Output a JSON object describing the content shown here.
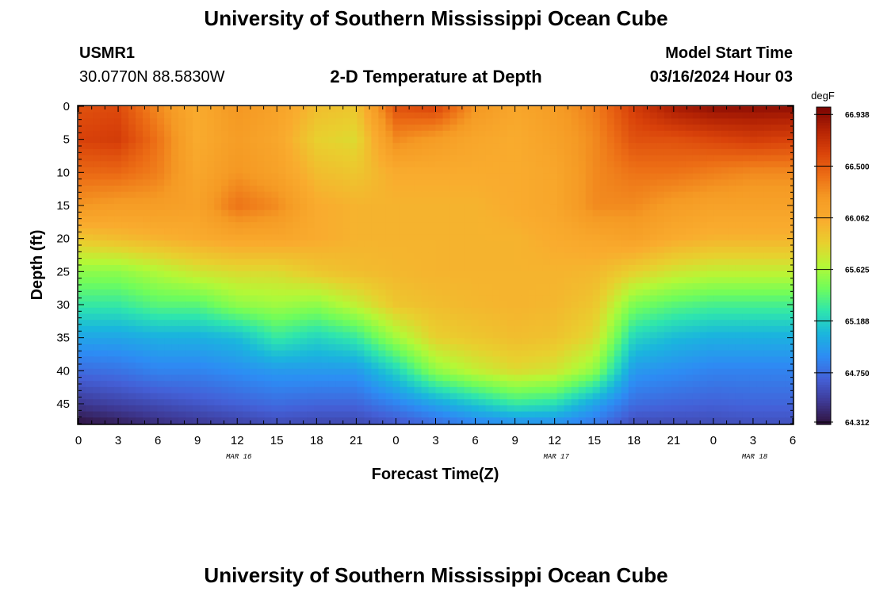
{
  "header": {
    "title": "University of Southern Mississippi Ocean Cube",
    "station_id": "USMR1",
    "station_coords": "30.0770N  88.5830W",
    "plot_title": "2-D Temperature at Depth",
    "model_label": "Model Start Time",
    "model_start": "03/16/2024 Hour 03"
  },
  "footer": {
    "title": "University of Southern Mississippi Ocean Cube"
  },
  "colors": {
    "palette": [
      "#30123b",
      "#3e3994",
      "#4460d7",
      "#2d8cf4",
      "#1ab6dd",
      "#2ee5ae",
      "#6ffd5b",
      "#b5f836",
      "#e8d02e",
      "#f9ac2e",
      "#f59a24",
      "#ec6d15",
      "#d9420a",
      "#b32204",
      "#7a0403"
    ]
  },
  "chart_data": {
    "type": "heatmap",
    "title": "2-D Temperature at Depth",
    "xlabel": "Forecast Time(Z)",
    "ylabel": "Depth (ft)",
    "units": "degF",
    "x_hours_from_start": [
      0,
      3,
      6,
      9,
      12,
      15,
      18,
      21,
      24,
      27,
      30,
      33,
      36,
      39,
      42,
      45,
      48,
      51,
      54
    ],
    "x_tick_labels": [
      "0",
      "3",
      "6",
      "9",
      "12",
      "15",
      "18",
      "21",
      "0",
      "3",
      "6",
      "9",
      "12",
      "15",
      "18",
      "21",
      "0",
      "3",
      "6"
    ],
    "date_labels": [
      {
        "hour": 12,
        "label": "MAR 16"
      },
      {
        "hour": 36,
        "label": "MAR 17"
      },
      {
        "hour": 51,
        "label": "MAR 18"
      }
    ],
    "y_ticks": [
      0,
      5,
      10,
      15,
      20,
      25,
      30,
      35,
      40,
      45
    ],
    "ylim": [
      0,
      48
    ],
    "xlim": [
      0,
      54
    ],
    "depth_ft": [
      0,
      5,
      10,
      15,
      20,
      25,
      30,
      35,
      40,
      45,
      48
    ],
    "temperature_rows": [
      [
        66.55,
        66.58,
        66.3,
        66.05,
        66.25,
        66.15,
        65.95,
        65.9,
        66.55,
        66.62,
        66.25,
        66.1,
        66.2,
        66.35,
        66.65,
        66.85,
        66.93,
        66.93,
        66.93
      ],
      [
        66.62,
        66.65,
        66.4,
        66.05,
        66.2,
        66.1,
        65.85,
        65.8,
        66.3,
        66.2,
        66.1,
        66.05,
        66.15,
        66.3,
        66.55,
        66.55,
        66.6,
        66.65,
        66.62
      ],
      [
        66.45,
        66.45,
        66.35,
        66.1,
        66.25,
        66.15,
        65.95,
        65.9,
        66.05,
        66.05,
        66.05,
        66.05,
        66.1,
        66.3,
        66.4,
        66.4,
        66.35,
        66.3,
        66.3
      ],
      [
        66.25,
        66.2,
        66.2,
        66.15,
        66.4,
        66.3,
        66.05,
        66.0,
        66.0,
        66.0,
        66.0,
        66.05,
        66.1,
        66.3,
        66.3,
        66.2,
        66.15,
        66.15,
        66.15
      ],
      [
        65.9,
        65.95,
        66.0,
        66.05,
        66.1,
        66.1,
        66.05,
        66.0,
        66.0,
        66.0,
        66.0,
        66.0,
        66.05,
        66.1,
        66.15,
        66.05,
        66.0,
        66.0,
        66.0
      ],
      [
        65.55,
        65.55,
        65.65,
        65.75,
        65.8,
        65.8,
        65.9,
        65.95,
        65.98,
        66.0,
        66.0,
        66.0,
        66.0,
        65.98,
        65.85,
        65.75,
        65.7,
        65.7,
        65.7
      ],
      [
        65.3,
        65.3,
        65.4,
        65.4,
        65.55,
        65.6,
        65.55,
        65.7,
        65.9,
        65.95,
        65.98,
        66.0,
        65.98,
        65.9,
        65.5,
        65.4,
        65.35,
        65.35,
        65.35
      ],
      [
        65.0,
        65.0,
        65.05,
        65.05,
        65.1,
        65.3,
        65.2,
        65.3,
        65.6,
        65.85,
        65.9,
        65.95,
        65.92,
        65.8,
        65.2,
        65.1,
        65.05,
        65.05,
        65.05
      ],
      [
        64.75,
        64.78,
        64.85,
        64.85,
        64.9,
        64.95,
        64.95,
        64.95,
        65.2,
        65.55,
        65.7,
        65.8,
        65.75,
        65.55,
        64.95,
        64.9,
        64.85,
        64.85,
        64.85
      ],
      [
        64.5,
        64.55,
        64.6,
        64.65,
        64.7,
        64.75,
        64.72,
        64.72,
        64.85,
        65.0,
        65.15,
        65.3,
        65.25,
        65.0,
        64.75,
        64.72,
        64.7,
        64.72,
        64.72
      ],
      [
        64.32,
        64.38,
        64.45,
        64.5,
        64.55,
        64.6,
        64.58,
        64.58,
        64.65,
        64.75,
        64.85,
        64.9,
        64.9,
        64.8,
        64.6,
        64.6,
        64.6,
        64.62,
        64.62
      ]
    ],
    "colorbar": {
      "label": "degF",
      "min": 64.312,
      "max": 67.0,
      "tick_values": [
        64.312,
        64.75,
        65.188,
        65.625,
        66.062,
        66.5,
        66.938
      ],
      "tick_labels": [
        "64.312",
        "64.750",
        "65.188",
        "65.625",
        "66.062",
        "66.500",
        "66.938"
      ]
    }
  }
}
